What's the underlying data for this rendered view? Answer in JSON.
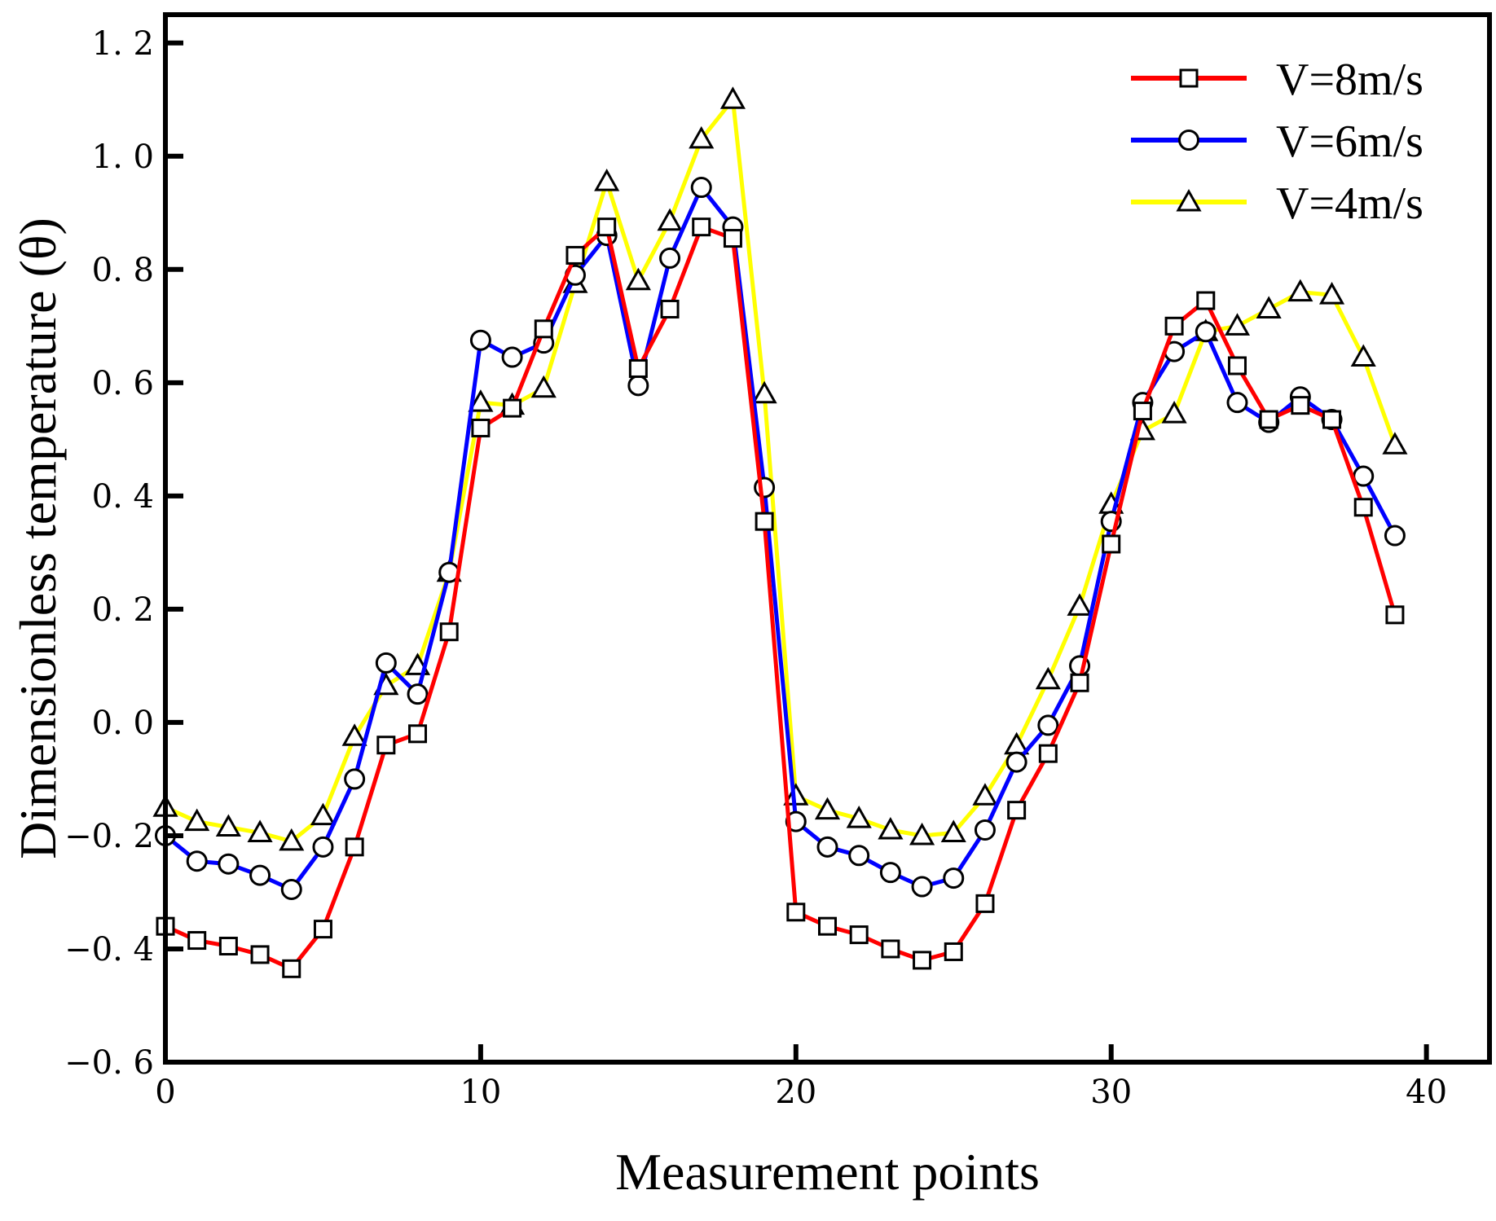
{
  "chart_data": {
    "type": "line",
    "title": "",
    "xlabel": "Measurement points",
    "ylabel": "Dimensionless temperature (θ)",
    "xlim": [
      0,
      42
    ],
    "ylim": [
      -0.6,
      1.25
    ],
    "xticks": [
      0,
      10,
      20,
      30,
      40
    ],
    "xtick_labels": [
      "0",
      "10",
      "20",
      "30",
      "40"
    ],
    "yticks": [
      -0.6,
      -0.4,
      -0.2,
      0.0,
      0.2,
      0.4,
      0.6,
      0.8,
      1.0,
      1.2
    ],
    "ytick_labels": [
      "−0. 6",
      "−0. 4",
      "−0. 2",
      "0. 0",
      "0. 2",
      "0. 4",
      "0. 6",
      "0. 8",
      "1. 0",
      "1. 2"
    ],
    "grid": false,
    "legend_position": "top-right",
    "x": [
      0,
      1,
      2,
      3,
      4,
      5,
      6,
      7,
      8,
      9,
      10,
      11,
      12,
      13,
      14,
      15,
      16,
      17,
      18,
      19,
      20,
      21,
      22,
      23,
      24,
      25,
      26,
      27,
      28,
      29,
      30,
      31,
      32,
      33,
      34,
      35,
      36,
      37,
      38,
      39
    ],
    "series": [
      {
        "name": "V=8m/s",
        "color": "#ff0000",
        "marker": "square",
        "values": [
          -0.36,
          -0.385,
          -0.395,
          -0.41,
          -0.435,
          -0.365,
          -0.22,
          -0.04,
          -0.02,
          0.16,
          0.52,
          0.555,
          0.695,
          0.825,
          0.875,
          0.625,
          0.73,
          0.875,
          0.855,
          0.355,
          -0.335,
          -0.36,
          -0.375,
          -0.4,
          -0.42,
          -0.405,
          -0.32,
          -0.155,
          -0.055,
          0.07,
          0.315,
          0.55,
          0.7,
          0.745,
          0.63,
          0.535,
          0.56,
          0.535,
          0.38,
          0.19
        ]
      },
      {
        "name": "V=6m/s",
        "color": "#0000ff",
        "marker": "circle",
        "values": [
          -0.2,
          -0.245,
          -0.25,
          -0.27,
          -0.295,
          -0.22,
          -0.1,
          0.105,
          0.05,
          0.265,
          0.675,
          0.645,
          0.67,
          0.79,
          0.86,
          0.595,
          0.82,
          0.945,
          0.875,
          0.415,
          -0.175,
          -0.22,
          -0.235,
          -0.265,
          -0.29,
          -0.275,
          -0.19,
          -0.07,
          -0.005,
          0.1,
          0.355,
          0.565,
          0.655,
          0.69,
          0.565,
          0.53,
          0.575,
          0.535,
          0.435,
          0.33
        ]
      },
      {
        "name": "V=4m/s",
        "color": "#ffff00",
        "marker": "triangle",
        "values": [
          -0.15,
          -0.175,
          -0.185,
          -0.195,
          -0.21,
          -0.165,
          -0.025,
          0.065,
          0.1,
          0.265,
          0.565,
          0.56,
          0.59,
          0.775,
          0.955,
          0.78,
          0.885,
          1.03,
          1.1,
          0.58,
          -0.13,
          -0.155,
          -0.17,
          -0.19,
          -0.2,
          -0.195,
          -0.13,
          -0.04,
          0.075,
          0.205,
          0.385,
          0.515,
          0.545,
          0.69,
          0.7,
          0.73,
          0.76,
          0.755,
          0.645,
          0.49
        ]
      }
    ]
  }
}
